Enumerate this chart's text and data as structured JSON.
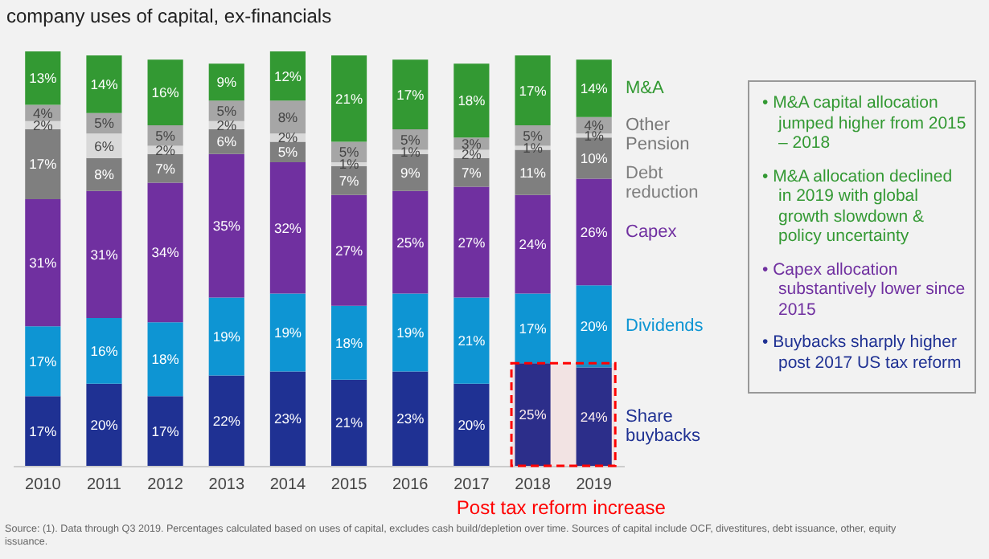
{
  "chart_data": {
    "type": "bar",
    "stacked": true,
    "title": "company uses of capital, ex-financials",
    "categories": [
      "2010",
      "2011",
      "2012",
      "2013",
      "2014",
      "2015",
      "2016",
      "2017",
      "2018",
      "2019"
    ],
    "series": [
      {
        "name": "Share buybacks",
        "color": "#1f3193",
        "values": [
          17,
          20,
          17,
          22,
          23,
          21,
          23,
          20,
          25,
          24
        ],
        "value_labels": [
          "17%",
          "20%",
          "17%",
          "22%",
          "23%",
          "21%",
          "23%",
          "20%",
          "25%",
          "24%"
        ]
      },
      {
        "name": "Dividends",
        "color": "#0e95d3",
        "values": [
          17,
          16,
          18,
          19,
          19,
          18,
          19,
          21,
          17,
          20
        ],
        "value_labels": [
          "17%",
          "16%",
          "18%",
          "19%",
          "19%",
          "18%",
          "19%",
          "21%",
          "17%",
          "20%"
        ]
      },
      {
        "name": "Capex",
        "color": "#7030a0",
        "values": [
          31,
          31,
          34,
          35,
          32,
          27,
          25,
          27,
          24,
          26
        ],
        "value_labels": [
          "31%",
          "31%",
          "34%",
          "35%",
          "32%",
          "27%",
          "25%",
          "27%",
          "24%",
          "26%"
        ]
      },
      {
        "name": "Debt reduction",
        "color": "#7f7f7f",
        "values": [
          17,
          8,
          7,
          6,
          5,
          7,
          9,
          7,
          11,
          10
        ],
        "value_labels": [
          "17%",
          "8%",
          "7%",
          "6%",
          "5%",
          "7%",
          "9%",
          "7%",
          "11%",
          "10%"
        ]
      },
      {
        "name": "Pension",
        "color": "#d9d9d9",
        "values": [
          2,
          6,
          2,
          2,
          2,
          1,
          1,
          2,
          1,
          1
        ],
        "value_labels": [
          "2%",
          "6%",
          "2%",
          "2%",
          "2%",
          "1%",
          "1%",
          "2%",
          "1%",
          "1%"
        ]
      },
      {
        "name": "Other",
        "color": "#a6a6a6",
        "values": [
          4,
          5,
          5,
          5,
          8,
          5,
          5,
          3,
          5,
          4
        ],
        "value_labels": [
          "4%",
          "5%",
          "5%",
          "5%",
          "8%",
          "5%",
          "5%",
          "3%",
          "5%",
          "4%"
        ]
      },
      {
        "name": "M&A",
        "color": "#339933",
        "values": [
          13,
          14,
          16,
          9,
          12,
          21,
          17,
          18,
          17,
          14
        ],
        "value_labels": [
          "13%",
          "14%",
          "16%",
          "9%",
          "12%",
          "21%",
          "17%",
          "18%",
          "17%",
          "14%"
        ]
      }
    ],
    "tick_labels": "x",
    "bands": [
      {
        "axis": "x",
        "from": "2018",
        "to": "2019",
        "label": "Post tax reform increase",
        "color": "#ff0000"
      }
    ],
    "annotations": [
      "• M&A capital allocation jumped higher from 2015 – 2018",
      "• M&A allocation declined in 2019 with global growth slowdown & policy uncertainty",
      "• Capex allocation substantively lower since 2015",
      "• Buybacks sharply higher post 2017 US tax reform",
      "Source: (1). Data through Q3 2019. Percentages calculated based on uses of capital, excludes cash build/depletion over time. Sources of capital include OCF, divestitures, debt issuance, other, equity issuance."
    ]
  }
}
